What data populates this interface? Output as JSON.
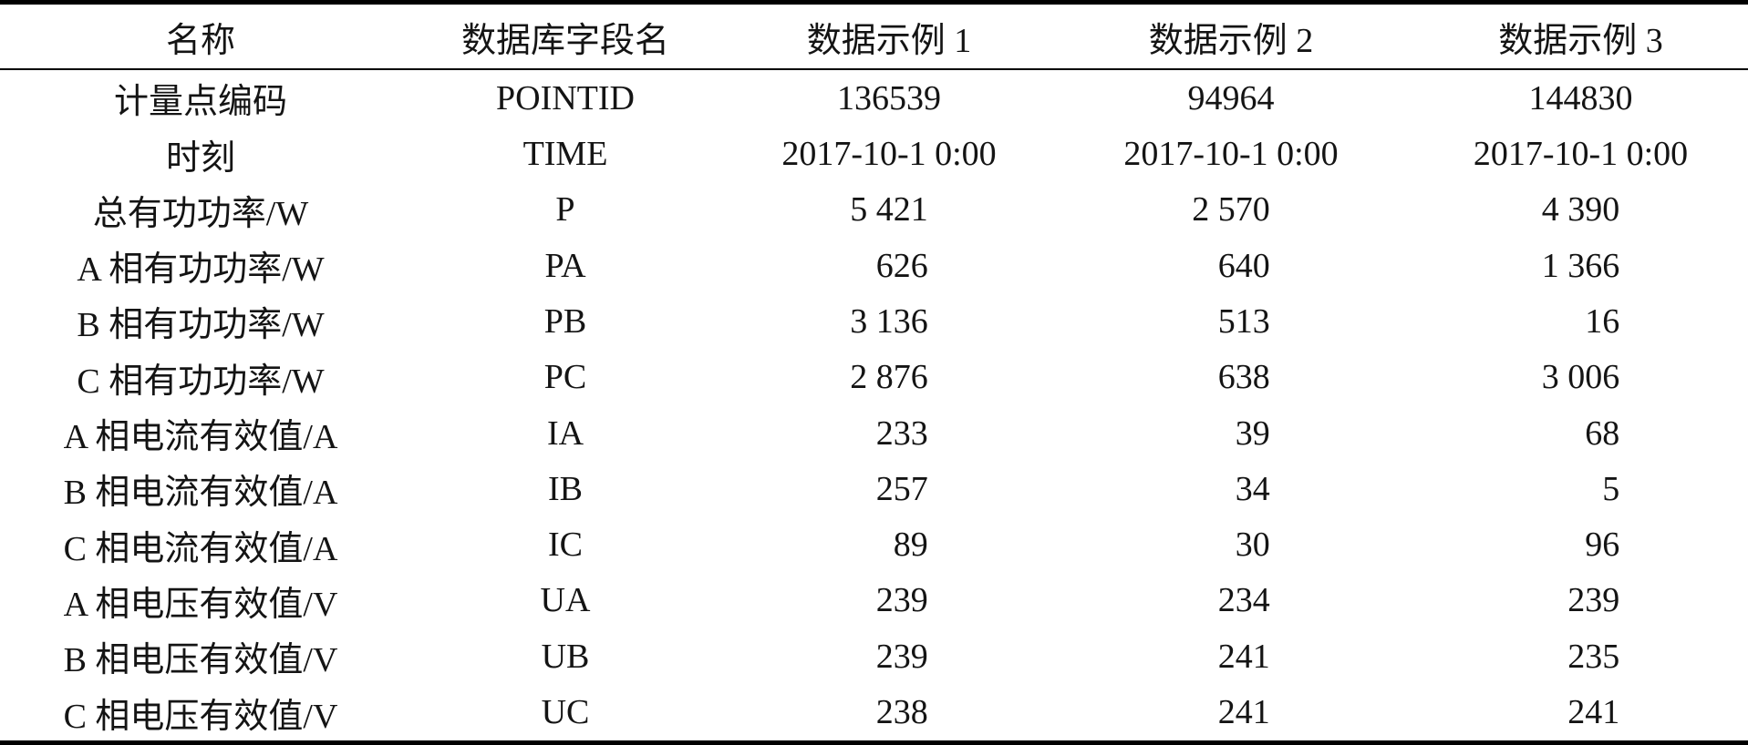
{
  "table": {
    "headers": [
      "名称",
      "数据库字段名",
      "数据示例 1",
      "数据示例 2",
      "数据示例 3"
    ],
    "rows": [
      {
        "name": "计量点编码",
        "field": "POINTID",
        "values": [
          "136539",
          "94964",
          "144830"
        ]
      },
      {
        "name": "时刻",
        "field": "TIME",
        "values": [
          "2017-10-1 0:00",
          "2017-10-1 0:00",
          "2017-10-1 0:00"
        ]
      },
      {
        "name": "总有功功率/W",
        "field": "P",
        "values": [
          "5 421",
          "2 570",
          "4 390"
        ]
      },
      {
        "name": "A 相有功功率/W",
        "field": "PA",
        "values": [
          "626",
          "640",
          "1 366"
        ]
      },
      {
        "name": "B 相有功功率/W",
        "field": "PB",
        "values": [
          "3 136",
          "513",
          "16"
        ]
      },
      {
        "name": "C 相有功功率/W",
        "field": "PC",
        "values": [
          "2 876",
          "638",
          "3 006"
        ]
      },
      {
        "name": "A 相电流有效值/A",
        "field": "IA",
        "values": [
          "233",
          "39",
          "68"
        ]
      },
      {
        "name": "B 相电流有效值/A",
        "field": "IB",
        "values": [
          "257",
          "34",
          "5"
        ]
      },
      {
        "name": "C 相电流有效值/A",
        "field": "IC",
        "values": [
          "89",
          "30",
          "96"
        ]
      },
      {
        "name": "A 相电压有效值/V",
        "field": "UA",
        "values": [
          "239",
          "234",
          "239"
        ]
      },
      {
        "name": "B 相电压有效值/V",
        "field": "UB",
        "values": [
          "239",
          "241",
          "235"
        ]
      },
      {
        "name": "C 相电压有效值/V",
        "field": "UC",
        "values": [
          "238",
          "241",
          "241"
        ]
      }
    ],
    "colors": {
      "background": "#ffffff",
      "text": "#141414",
      "rule": "#000000"
    }
  }
}
